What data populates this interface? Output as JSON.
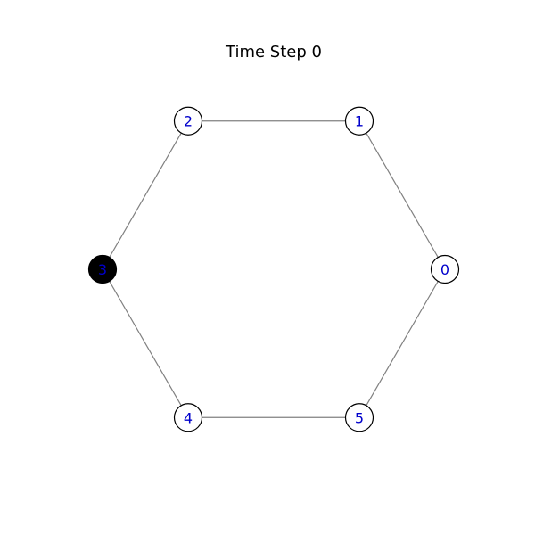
{
  "title": "Time Step 0",
  "colors": {
    "edge": "#808080",
    "node_fill_default": "#ffffff",
    "node_fill_active": "#000000",
    "node_stroke": "#000000",
    "label": "#0000cc"
  },
  "graph": {
    "layout": "circular",
    "nodes": [
      {
        "id": "0",
        "label": "0",
        "active": false
      },
      {
        "id": "1",
        "label": "1",
        "active": false
      },
      {
        "id": "2",
        "label": "2",
        "active": false
      },
      {
        "id": "3",
        "label": "3",
        "active": true
      },
      {
        "id": "4",
        "label": "4",
        "active": false
      },
      {
        "id": "5",
        "label": "5",
        "active": false
      }
    ],
    "edges": [
      [
        "0",
        "1"
      ],
      [
        "1",
        "2"
      ],
      [
        "2",
        "3"
      ],
      [
        "3",
        "4"
      ],
      [
        "4",
        "5"
      ],
      [
        "5",
        "0"
      ]
    ]
  }
}
